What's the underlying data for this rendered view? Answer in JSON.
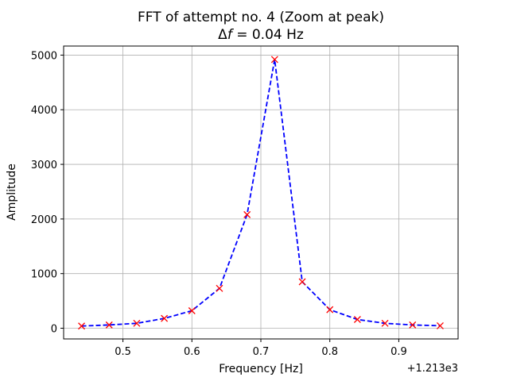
{
  "chart_data": {
    "type": "line",
    "title": "FFT of attempt no. 4 (Zoom at peak)",
    "subtitle_prefix": "Δ",
    "subtitle_var": "f",
    "subtitle_rest": " = 0.04 Hz",
    "xlabel": "Frequency [Hz]",
    "ylabel": "Amplitude",
    "x_offset_label": "+1.213e3",
    "x_display": [
      0.44,
      0.48,
      0.52,
      0.56,
      0.6,
      0.64,
      0.68,
      0.72,
      0.76,
      0.8,
      0.84,
      0.88,
      0.92,
      0.96
    ],
    "series": [
      {
        "values": [
          40,
          60,
          90,
          180,
          320,
          730,
          2080,
          4920,
          850,
          340,
          160,
          90,
          60,
          45
        ],
        "line_color": "#0000ff",
        "line_style": "dashed",
        "marker": "x",
        "marker_color": "#ff0000"
      }
    ],
    "xlim": [
      0.414,
      0.986
    ],
    "ylim": [
      -196,
      5166
    ],
    "xticks": [
      0.5,
      0.6,
      0.7,
      0.8,
      0.9
    ],
    "xtick_labels": [
      "0.5",
      "0.6",
      "0.7",
      "0.8",
      "0.9"
    ],
    "yticks": [
      0,
      1000,
      2000,
      3000,
      4000,
      5000
    ],
    "ytick_labels": [
      "0",
      "1000",
      "2000",
      "3000",
      "4000",
      "5000"
    ],
    "grid": true,
    "grid_color": "#b0b0b0"
  }
}
